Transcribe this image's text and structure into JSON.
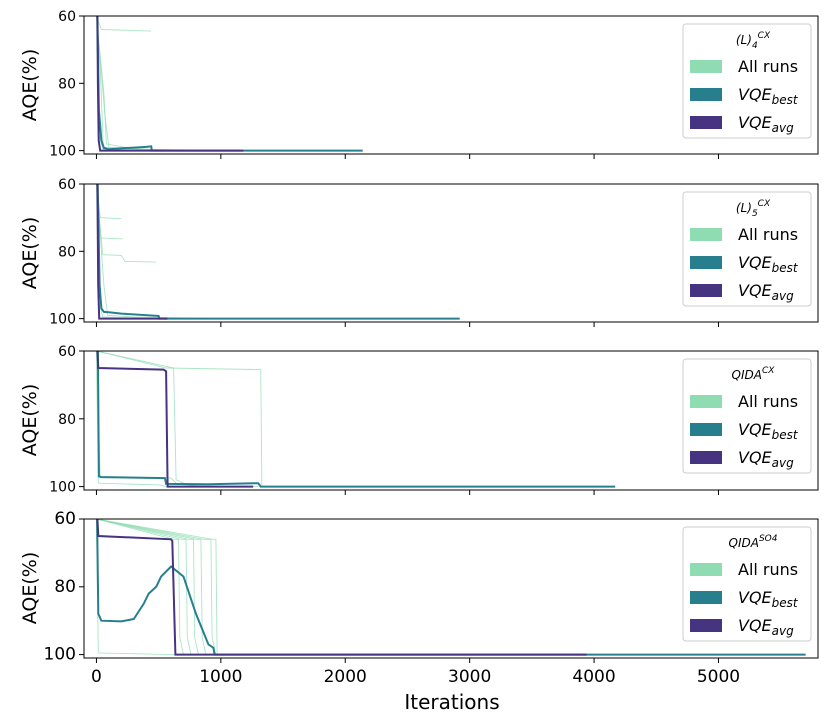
{
  "chart_data": {
    "type": "line",
    "xlabel": "Iterations",
    "xlim": [
      -100,
      5800
    ],
    "xticks": [
      0,
      1000,
      2000,
      3000,
      4000,
      5000
    ],
    "xtick_labels": [
      "0",
      "1000",
      "2000",
      "3000",
      "4000",
      "5000"
    ],
    "legend_entries": [
      "All runs",
      "VQE_best",
      "VQE_avg"
    ],
    "colors": {
      "all_runs": "#8fdcb2",
      "best": "#277f8e",
      "avg": "#463480"
    },
    "panels": [
      {
        "ylabel": "AQE(%)",
        "ylim": [
          60,
          101
        ],
        "yticks": [
          60,
          80,
          100
        ],
        "ytick_labels": [
          "60",
          "80",
          "100"
        ],
        "legend_title_base": "(L)",
        "legend_title_sub": "4",
        "legend_title_sup": "CX",
        "runs": [
          [
            [
              0,
              60
            ],
            [
              40,
              64
            ],
            [
              440,
              64.5
            ]
          ],
          [
            [
              0,
              60
            ],
            [
              30,
              75
            ],
            [
              55,
              99
            ],
            [
              200,
              99.5
            ],
            [
              800,
              100
            ]
          ],
          [
            [
              0,
              60
            ],
            [
              60,
              83
            ],
            [
              80,
              98
            ],
            [
              300,
              99.5
            ],
            [
              1000,
              100
            ]
          ],
          [
            [
              0,
              60
            ],
            [
              70,
              90
            ],
            [
              100,
              99
            ],
            [
              600,
              100
            ],
            [
              1500,
              100
            ]
          ],
          [
            [
              0,
              60
            ],
            [
              20,
              95
            ],
            [
              50,
              99.5
            ],
            [
              400,
              100
            ],
            [
              1200,
              100
            ]
          ]
        ],
        "best": [
          [
            0,
            60
          ],
          [
            8,
            60
          ],
          [
            20,
            88
          ],
          [
            40,
            97
          ],
          [
            60,
            99.2
          ],
          [
            100,
            99.6
          ],
          [
            200,
            99.3
          ],
          [
            300,
            99.1
          ],
          [
            400,
            98.9
          ],
          [
            440,
            98.7
          ],
          [
            445,
            100
          ],
          [
            1000,
            100
          ],
          [
            2140,
            100
          ]
        ],
        "avg": [
          [
            0,
            60
          ],
          [
            8,
            60
          ],
          [
            12,
            80
          ],
          [
            18,
            97
          ],
          [
            30,
            100
          ],
          [
            1180,
            100
          ]
        ]
      },
      {
        "ylabel": "AQE(%)",
        "ylim": [
          60,
          101
        ],
        "yticks": [
          60,
          80,
          100
        ],
        "ytick_labels": [
          "60",
          "80",
          "100"
        ],
        "legend_title_base": "(L)",
        "legend_title_sub": "5",
        "legend_title_sup": "CX",
        "runs": [
          [
            [
              0,
              60
            ],
            [
              30,
              70
            ],
            [
              200,
              70.3
            ]
          ],
          [
            [
              0,
              60
            ],
            [
              35,
              76
            ],
            [
              210,
              76.3
            ]
          ],
          [
            [
              0,
              60
            ],
            [
              50,
              81
            ],
            [
              200,
              81.2
            ],
            [
              230,
              83
            ],
            [
              480,
              83.2
            ]
          ],
          [
            [
              0,
              60
            ],
            [
              60,
              90
            ],
            [
              90,
              99
            ],
            [
              300,
              99.5
            ],
            [
              1000,
              100
            ]
          ],
          [
            [
              0,
              60
            ],
            [
              20,
              95
            ],
            [
              50,
              99.5
            ],
            [
              500,
              100
            ],
            [
              1500,
              100
            ]
          ]
        ],
        "best": [
          [
            0,
            60
          ],
          [
            10,
            60
          ],
          [
            25,
            90
          ],
          [
            40,
            97
          ],
          [
            60,
            98
          ],
          [
            100,
            98.1
          ],
          [
            200,
            98.5
          ],
          [
            500,
            99.2
          ],
          [
            505,
            100
          ],
          [
            1500,
            100
          ],
          [
            2920,
            100
          ]
        ],
        "avg": [
          [
            0,
            60
          ],
          [
            8,
            60
          ],
          [
            14,
            90
          ],
          [
            22,
            100
          ],
          [
            570,
            100
          ]
        ]
      },
      {
        "ylabel": "AQE(%)",
        "ylim": [
          60,
          101
        ],
        "yticks": [
          60,
          80,
          100
        ],
        "ytick_labels": [
          "60",
          "80",
          "100"
        ],
        "legend_title_base": "QIDA",
        "legend_title_sub": "",
        "legend_title_sup": "CX",
        "runs": [
          [
            [
              0,
              60
            ],
            [
              560,
              65
            ],
            [
              1320,
              65.5
            ],
            [
              1330,
              100
            ],
            [
              2000,
              100
            ]
          ],
          [
            [
              0,
              60
            ],
            [
              30,
              97
            ],
            [
              600,
              97.5
            ],
            [
              650,
              99.3
            ],
            [
              900,
              100
            ],
            [
              1300,
              100
            ]
          ],
          [
            [
              0,
              60
            ],
            [
              15,
              99
            ],
            [
              500,
              99.5
            ],
            [
              560,
              100
            ],
            [
              1000,
              100
            ]
          ],
          [
            [
              0,
              60
            ],
            [
              620,
              65
            ],
            [
              640,
              98
            ],
            [
              700,
              99
            ],
            [
              800,
              100
            ],
            [
              1100,
              100
            ]
          ]
        ],
        "best": [
          [
            0,
            60
          ],
          [
            12,
            60
          ],
          [
            20,
            97
          ],
          [
            40,
            97.2
          ],
          [
            550,
            97.5
          ],
          [
            560,
            99.2
          ],
          [
            900,
            99.3
          ],
          [
            1300,
            99
          ],
          [
            1320,
            100
          ],
          [
            2000,
            100
          ],
          [
            4170,
            100
          ]
        ],
        "avg": [
          [
            0,
            60
          ],
          [
            8,
            60
          ],
          [
            15,
            65
          ],
          [
            540,
            65.5
          ],
          [
            560,
            66
          ],
          [
            572,
            100
          ],
          [
            1260,
            100
          ]
        ]
      },
      {
        "ylabel": "AQE(%)",
        "ylim": [
          60,
          101
        ],
        "yticks": [
          60,
          80,
          100
        ],
        "ytick_labels": [
          "60",
          "80",
          "100"
        ],
        "legend_title_base": "QIDA",
        "legend_title_sub": "",
        "legend_title_sup": "SO4",
        "runs": [
          [
            [
              0,
              60
            ],
            [
              620,
              66
            ],
            [
              660,
              66
            ],
            [
              670,
              95
            ],
            [
              700,
              100
            ]
          ],
          [
            [
              0,
              60
            ],
            [
              680,
              66
            ],
            [
              720,
              66
            ],
            [
              730,
              95
            ],
            [
              760,
              100
            ]
          ],
          [
            [
              0,
              60
            ],
            [
              740,
              66
            ],
            [
              780,
              66
            ],
            [
              790,
              95
            ],
            [
              820,
              100
            ]
          ],
          [
            [
              0,
              60
            ],
            [
              800,
              66
            ],
            [
              840,
              66
            ],
            [
              850,
              95
            ],
            [
              880,
              100
            ]
          ],
          [
            [
              0,
              60
            ],
            [
              860,
              66
            ],
            [
              920,
              66
            ],
            [
              930,
              95
            ],
            [
              960,
              100
            ]
          ],
          [
            [
              0,
              60
            ],
            [
              930,
              66
            ],
            [
              960,
              66
            ],
            [
              970,
              100
            ]
          ],
          [
            [
              0,
              60
            ],
            [
              15,
              99.5
            ],
            [
              600,
              100
            ],
            [
              1000,
              100
            ]
          ]
        ],
        "best": [
          [
            0,
            60
          ],
          [
            5,
            60
          ],
          [
            15,
            88
          ],
          [
            40,
            90
          ],
          [
            200,
            90.2
          ],
          [
            300,
            89.5
          ],
          [
            380,
            85
          ],
          [
            420,
            82
          ],
          [
            480,
            80
          ],
          [
            520,
            77
          ],
          [
            600,
            74
          ],
          [
            700,
            77
          ],
          [
            800,
            88
          ],
          [
            900,
            97
          ],
          [
            940,
            98
          ],
          [
            950,
            100
          ],
          [
            2000,
            100
          ],
          [
            5700,
            100
          ]
        ],
        "avg": [
          [
            0,
            60
          ],
          [
            8,
            60
          ],
          [
            15,
            65
          ],
          [
            600,
            66
          ],
          [
            610,
            66.5
          ],
          [
            635,
            100
          ],
          [
            1500,
            100
          ],
          [
            3940,
            100
          ]
        ]
      }
    ]
  }
}
